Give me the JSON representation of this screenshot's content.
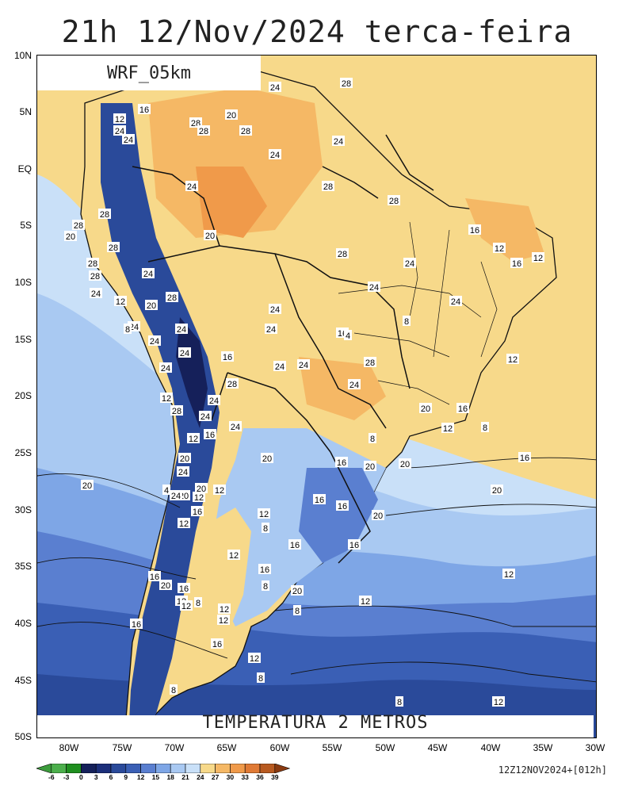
{
  "title": "21h 12/Nov/2024 terca-feira",
  "model_label": "WRF_05km",
  "variable_label": "TEMPERATURA 2 METROS",
  "run_stamp": "12Z12NOV2024+[012h]",
  "lat_labels": [
    "10N",
    "5N",
    "EQ",
    "5S",
    "10S",
    "15S",
    "20S",
    "25S",
    "30S",
    "35S",
    "40S",
    "45S",
    "50S"
  ],
  "lon_labels": [
    "80W",
    "75W",
    "70W",
    "65W",
    "60W",
    "55W",
    "50W",
    "45W",
    "40W",
    "35W",
    "30W"
  ],
  "colorbar": {
    "labels": [
      "-6",
      "-3",
      "0",
      "3",
      "6",
      "9",
      "12",
      "15",
      "18",
      "21",
      "24",
      "27",
      "30",
      "33",
      "36",
      "39"
    ],
    "colors": [
      "#3c9c3c",
      "#4caf4c",
      "#1f8f1f",
      "#15205a",
      "#1c2f7a",
      "#2a4a9a",
      "#3a5fb5",
      "#5a7fd0",
      "#7ea6e6",
      "#a9c9f2",
      "#c9e0f8",
      "#f7d98a",
      "#f5b865",
      "#f09a4a",
      "#e07a35",
      "#b85a20",
      "#8a3a10"
    ]
  },
  "contour_labels": [
    "24",
    "28",
    "16",
    "12",
    "24",
    "24",
    "28",
    "20",
    "28",
    "28",
    "24",
    "24",
    "24",
    "28",
    "28",
    "28",
    "28",
    "20",
    "20",
    "16",
    "12",
    "16",
    "12",
    "28",
    "24",
    "28",
    "28",
    "28",
    "24",
    "28",
    "24",
    "24",
    "24",
    "24",
    "24",
    "12",
    "20",
    "24",
    "24",
    "8",
    "16",
    "4",
    "8",
    "24",
    "24",
    "24",
    "16",
    "12",
    "28",
    "24",
    "24",
    "28",
    "24",
    "20",
    "16",
    "8",
    "12",
    "12",
    "28",
    "24",
    "24",
    "24",
    "16",
    "12",
    "8",
    "20",
    "24",
    "20",
    "16",
    "20",
    "20",
    "16",
    "4",
    "20",
    "12",
    "12",
    "20",
    "16",
    "16",
    "20",
    "12",
    "24",
    "20",
    "20",
    "16",
    "16",
    "12",
    "8",
    "16",
    "12",
    "16",
    "16",
    "20",
    "12",
    "8",
    "20",
    "16",
    "12",
    "8",
    "12",
    "8",
    "12",
    "16",
    "16",
    "12",
    "12",
    "12",
    "8",
    "8",
    "8",
    "12",
    "12"
  ],
  "map_colors": {
    "ocean_warm": "#f7d98a",
    "ocean_mid": "#a9c9f2",
    "ocean_cool": "#7ea6e6",
    "ocean_cold": "#5a7fd0",
    "ocean_colder": "#3a5fb5",
    "land_hot": "#f5b865",
    "land_warm": "#f7d98a",
    "land_very_hot": "#f09a4a",
    "andes": "#2a4a9a"
  }
}
